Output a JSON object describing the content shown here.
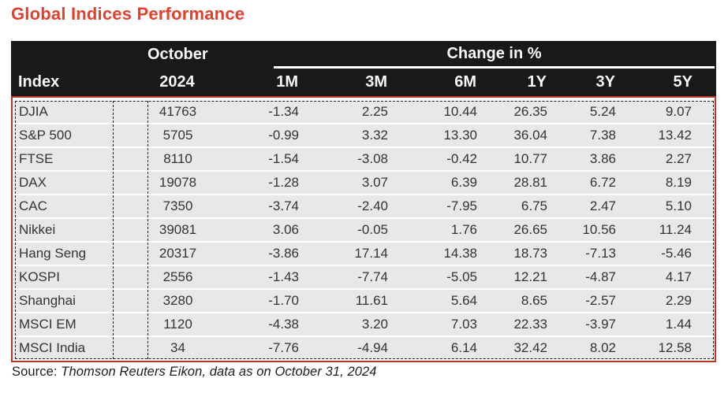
{
  "title": "Global Indices Performance",
  "header": {
    "index_label": "Index",
    "october_line1": "October",
    "october_line2": "2024",
    "change_label": "Change in %",
    "periods": [
      "1M",
      "3M",
      "6M",
      "1Y",
      "3Y",
      "5Y"
    ]
  },
  "chart_data": {
    "type": "table",
    "title": "Global Indices Performance",
    "columns": [
      "Index",
      "October 2024",
      "1M",
      "3M",
      "6M",
      "1Y",
      "3Y",
      "5Y"
    ],
    "change_columns_unit": "%",
    "rows": [
      [
        "DJIA",
        41763,
        -1.34,
        2.25,
        10.44,
        26.35,
        5.24,
        9.07
      ],
      [
        "S&P 500",
        5705,
        -0.99,
        3.32,
        13.3,
        36.04,
        7.38,
        13.42
      ],
      [
        "FTSE",
        8110,
        -1.54,
        -3.08,
        -0.42,
        10.77,
        3.86,
        2.27
      ],
      [
        "DAX",
        19078,
        -1.28,
        3.07,
        6.39,
        28.81,
        6.72,
        8.19
      ],
      [
        "CAC",
        7350,
        -3.74,
        -2.4,
        -7.95,
        6.75,
        2.47,
        5.1
      ],
      [
        "Nikkei",
        39081,
        3.06,
        -0.05,
        1.76,
        26.65,
        10.56,
        11.24
      ],
      [
        "Hang Seng",
        20317,
        -3.86,
        17.14,
        14.38,
        18.73,
        -7.13,
        -5.46
      ],
      [
        "KOSPI",
        2556,
        -1.43,
        -7.74,
        -5.05,
        12.21,
        -4.87,
        4.17
      ],
      [
        "Shanghai",
        3280,
        -1.7,
        11.61,
        5.64,
        8.65,
        -2.57,
        2.29
      ],
      [
        "MSCI EM",
        1120,
        -4.38,
        3.2,
        7.03,
        22.33,
        -3.97,
        1.44
      ],
      [
        "MSCI India",
        34,
        -7.76,
        -4.94,
        6.14,
        32.42,
        8.02,
        12.58
      ]
    ]
  },
  "source": {
    "label": "Source:",
    "detail": "Thomson Reuters Eikon, data as on October 31, 2024"
  },
  "colors": {
    "title_red": "#e3402c",
    "table_border_red": "#b83427",
    "header_bg": "#191919",
    "header_text": "#fafafa",
    "row_bg": "#e9e8e8",
    "body_text": "#333333"
  }
}
